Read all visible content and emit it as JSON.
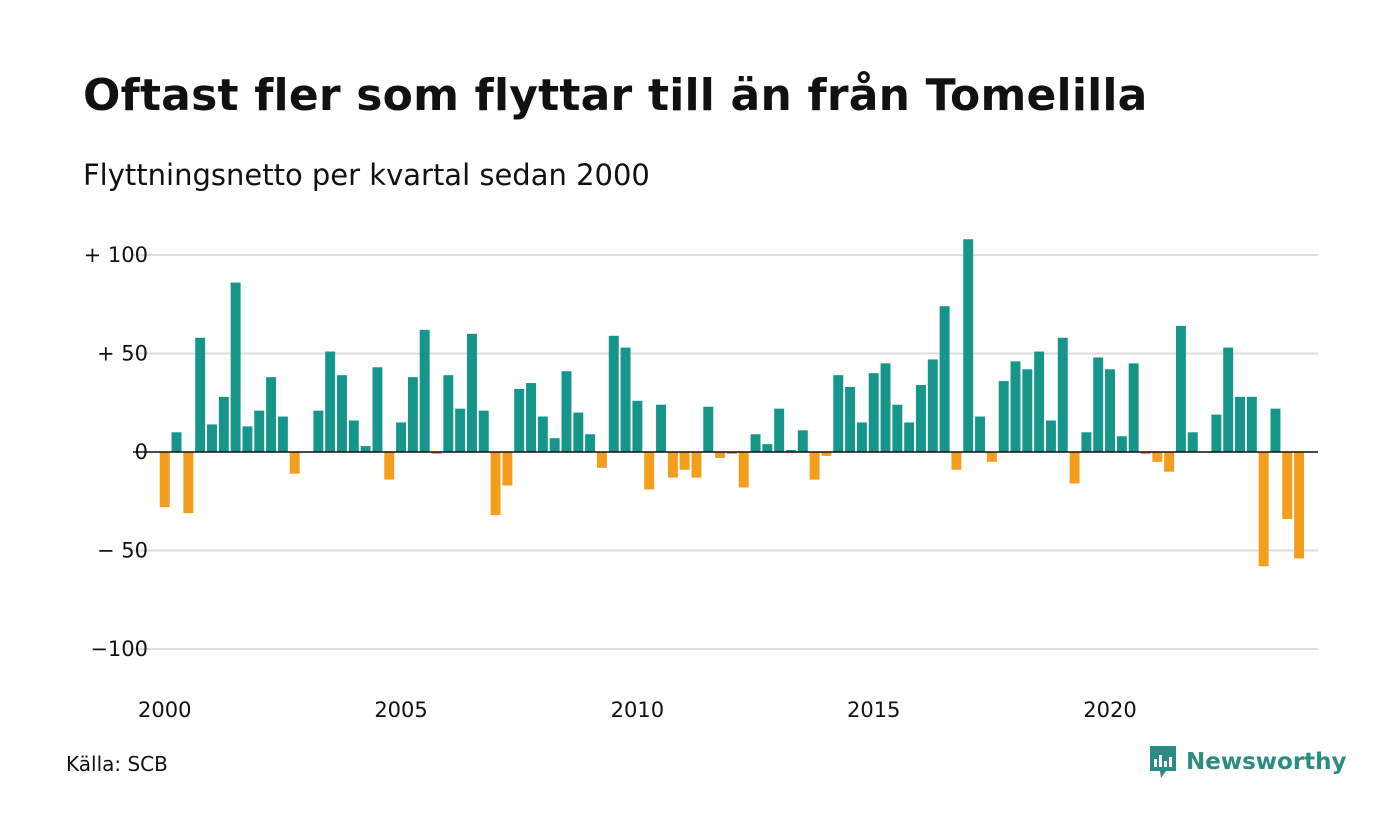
{
  "title": "Oftast fler som flyttar till än från Tomelilla",
  "subtitle": "Flyttningsnetto per kvartal sedan 2000",
  "source": "Källa: SCB",
  "brand": "Newsworthy",
  "colors": {
    "positive": "#16968a",
    "negative": "#f59d1c",
    "grid": "#dddddd",
    "baseline": "#111111",
    "brand": "#2a8c84"
  },
  "chart_data": {
    "type": "bar",
    "title": "Oftast fler som flyttar till än från Tomelilla",
    "subtitle": "Flyttningsnetto per kvartal sedan 2000",
    "xlabel": "",
    "ylabel": "",
    "x_start": 2000.0,
    "x_step": 0.25,
    "xlim": [
      1999.9,
      2024.4
    ],
    "ylim": [
      -110,
      110
    ],
    "grid": true,
    "yticks": [
      100,
      50,
      0,
      -50,
      -100
    ],
    "ytick_labels": [
      "+ 100",
      "+  50",
      "0",
      "− 50",
      "−100"
    ],
    "xticks": [
      2000,
      2005,
      2010,
      2015,
      2020
    ],
    "xtick_labels": [
      "2000",
      "2005",
      "2010",
      "2015",
      "2020"
    ],
    "values": [
      -28,
      10,
      -31,
      58,
      14,
      28,
      86,
      13,
      21,
      38,
      18,
      -11,
      0,
      21,
      51,
      39,
      16,
      3,
      43,
      -14,
      15,
      38,
      62,
      -1,
      39,
      22,
      60,
      21,
      -32,
      -17,
      32,
      35,
      18,
      7,
      41,
      20,
      9,
      -8,
      59,
      53,
      26,
      -19,
      24,
      -13,
      -9,
      -13,
      23,
      -3,
      -1,
      -18,
      9,
      4,
      22,
      1,
      11,
      -14,
      -2,
      39,
      33,
      15,
      40,
      45,
      24,
      15,
      34,
      47,
      74,
      -9,
      108,
      18,
      -5,
      36,
      46,
      42,
      51,
      16,
      58,
      -16,
      10,
      48,
      42,
      8,
      45,
      -1,
      -5,
      -10,
      64,
      10,
      0,
      19,
      53,
      28,
      28,
      -58,
      22,
      -34,
      -54
    ]
  }
}
